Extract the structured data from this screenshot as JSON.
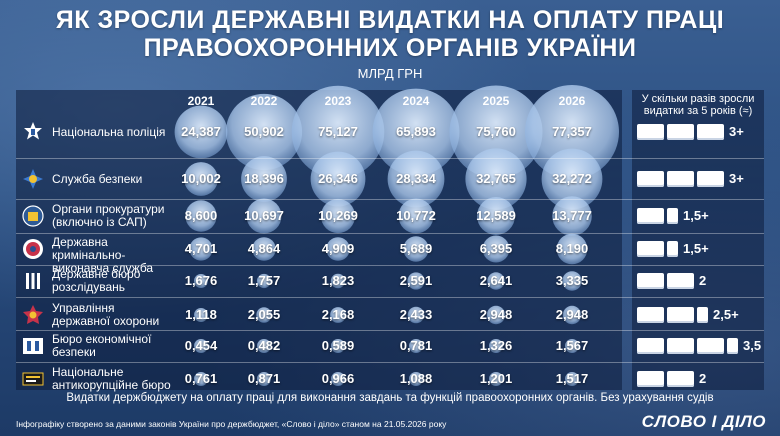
{
  "title_line1": "ЯК ЗРОСЛИ ДЕРЖАВНІ ВИДАТКИ НА ОПЛАТУ ПРАЦІ",
  "title_line2": "ПРАВООХОРОННИХ ОРГАНІВ УКРАЇНИ",
  "unit": "МЛРД ГРН",
  "ratio_header_line1": "У скільки разів зросли",
  "ratio_header_line2": "видатки за 5 років (≈)",
  "footnote": "Видатки держбюджету на оплату праці для виконання завдань та функцій правоохоронних органів. Без урахування судів",
  "source": "Інфографіку створено за даними законів України про держбюджет, «Слово і діло» станом на 21.05.2026 року",
  "logo": "СЛОВО І ДІЛО",
  "colors": {
    "background": "#2a4e80",
    "bubble": "#cfe0f5",
    "text": "#ffffff"
  },
  "chart_data": {
    "type": "table",
    "years": [
      "2021",
      "2022",
      "2023",
      "2024",
      "2025",
      "2026"
    ],
    "unit": "млрд грн",
    "rows": [
      {
        "name_lines": [
          "Національна поліція"
        ],
        "icon": "police-badge-icon",
        "values": [
          "24,387",
          "50,902",
          "75,127",
          "65,893",
          "75,760",
          "77,357"
        ],
        "nums": [
          24.387,
          50.902,
          75.127,
          65.893,
          75.76,
          77.357
        ],
        "ratio": "3+",
        "ratio_boxes": 3
      },
      {
        "name_lines": [
          "Служба безпеки"
        ],
        "icon": "sbu-emblem-icon",
        "values": [
          "10,002",
          "18,396",
          "26,346",
          "28,334",
          "32,765",
          "32,272"
        ],
        "nums": [
          10.002,
          18.396,
          26.346,
          28.334,
          32.765,
          32.272
        ],
        "ratio": "3+",
        "ratio_boxes": 3
      },
      {
        "name_lines": [
          "Органи прокуратури",
          "(включно із САП)"
        ],
        "icon": "prosecutor-emblem-icon",
        "values": [
          "8,600",
          "10,697",
          "10,269",
          "10,772",
          "12,589",
          "13,777"
        ],
        "nums": [
          8.6,
          10.697,
          10.269,
          10.772,
          12.589,
          13.777
        ],
        "ratio": "1,5+",
        "ratio_boxes": 1.5
      },
      {
        "name_lines": [
          "Державна кримінально-",
          "виконавча служба"
        ],
        "icon": "penitentiary-emblem-icon",
        "values": [
          "4,701",
          "4,864",
          "4,909",
          "5,689",
          "6,395",
          "8,190"
        ],
        "nums": [
          4.701,
          4.864,
          4.909,
          5.689,
          6.395,
          8.19
        ],
        "ratio": "1,5+",
        "ratio_boxes": 1.5
      },
      {
        "name_lines": [
          "Державне бюро",
          "розслідувань"
        ],
        "icon": "dbr-logo-icon",
        "values": [
          "1,676",
          "1,757",
          "1,823",
          "2,591",
          "2,641",
          "3,335"
        ],
        "nums": [
          1.676,
          1.757,
          1.823,
          2.591,
          2.641,
          3.335
        ],
        "ratio": "2",
        "ratio_boxes": 2
      },
      {
        "name_lines": [
          "Управління",
          "державної охорони"
        ],
        "icon": "state-guard-emblem-icon",
        "values": [
          "1,118",
          "2,055",
          "2,168",
          "2,433",
          "2,948",
          "2,948"
        ],
        "nums": [
          1.118,
          2.055,
          2.168,
          2.433,
          2.948,
          2.948
        ],
        "ratio": "2,5+",
        "ratio_boxes": 2.5
      },
      {
        "name_lines": [
          "Бюро економічної",
          "безпеки"
        ],
        "icon": "beb-logo-icon",
        "values": [
          "0,454",
          "0,482",
          "0,589",
          "0,781",
          "1,326",
          "1,567"
        ],
        "nums": [
          0.454,
          0.482,
          0.589,
          0.781,
          1.326,
          1.567
        ],
        "ratio": "3,5",
        "ratio_boxes": 3.5
      },
      {
        "name_lines": [
          "Національне",
          "антикорупційне бюро"
        ],
        "icon": "nabu-logo-icon",
        "values": [
          "0,761",
          "0,871",
          "0,966",
          "1,088",
          "1,201",
          "1,517"
        ],
        "nums": [
          0.761,
          0.871,
          0.966,
          1.088,
          1.201,
          1.517
        ],
        "ratio": "2",
        "ratio_boxes": 2
      }
    ]
  }
}
